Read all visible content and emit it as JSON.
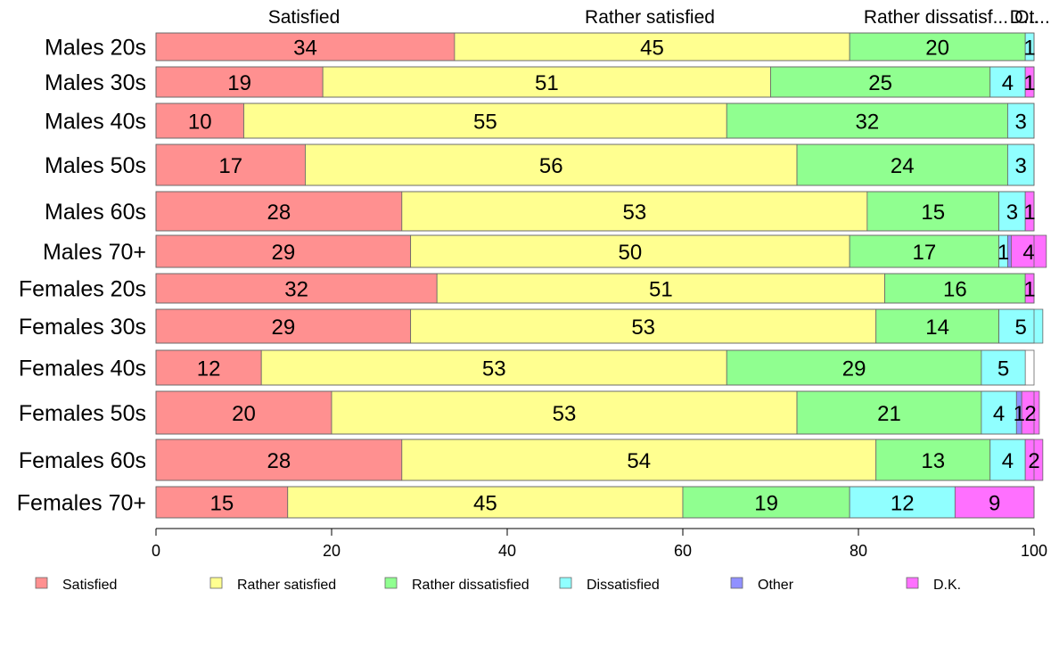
{
  "colors": {
    "Satisfied": "#ff9090",
    "Rather satisfied": "#ffff90",
    "Rather dissatisfied": "#90ff90",
    "Dissatisfied": "#90ffff",
    "Other": "#9090ff",
    "D.K.": "#ff70ff"
  },
  "chart_data": {
    "type": "bar",
    "orientation": "horizontal-stacked-100",
    "xlim": [
      0,
      100
    ],
    "x_ticks": [
      0,
      20,
      40,
      60,
      80,
      100
    ],
    "grid": false,
    "legend_position": "bottom",
    "top_labels": [
      "Satisfied",
      "Rather satisfied",
      "Rather dissatisf...",
      "D...",
      "Ot..."
    ],
    "categories": [
      "Males 20s",
      "Males 30s",
      "Males 40s",
      "Males 50s",
      "Males 60s",
      "Males 70+",
      "Females 20s",
      "Females 30s",
      "Females 40s",
      "Females 50s",
      "Females 60s",
      "Females 70+"
    ],
    "series": [
      {
        "name": "Satisfied",
        "values": [
          34,
          19,
          10,
          17,
          28,
          29,
          32,
          29,
          12,
          20,
          28,
          15
        ]
      },
      {
        "name": "Rather satisfied",
        "values": [
          45,
          51,
          55,
          56,
          53,
          50,
          51,
          53,
          53,
          53,
          54,
          45
        ]
      },
      {
        "name": "Rather dissatisfied",
        "values": [
          20,
          25,
          32,
          24,
          15,
          17,
          16,
          14,
          29,
          21,
          13,
          19
        ]
      },
      {
        "name": "Dissatisfied",
        "values": [
          1,
          4,
          3,
          3,
          3,
          1,
          0,
          5,
          5,
          4,
          4,
          12
        ]
      },
      {
        "name": "Other",
        "values": [
          0,
          0,
          0,
          0,
          0,
          0.4,
          0,
          0,
          0,
          0.6,
          0,
          0
        ]
      },
      {
        "name": "D.K.",
        "values": [
          0,
          1,
          0,
          0,
          1,
          4,
          1,
          0,
          0,
          2,
          2,
          9
        ]
      }
    ],
    "value_labels": [
      [
        "34",
        "45",
        "20",
        "1",
        "",
        ""
      ],
      [
        "19",
        "51",
        "25",
        "4",
        "",
        "1"
      ],
      [
        "10",
        "55",
        "32",
        "3",
        "",
        ""
      ],
      [
        "17",
        "56",
        "24",
        "3",
        "",
        ""
      ],
      [
        "28",
        "53",
        "15",
        "3",
        "",
        "1"
      ],
      [
        "29",
        "50",
        "17",
        "1",
        "",
        "4"
      ],
      [
        "32",
        "51",
        "16",
        "",
        "",
        "1"
      ],
      [
        "29",
        "53",
        "14",
        "5",
        "",
        ""
      ],
      [
        "12",
        "53",
        "29",
        "5",
        "",
        ""
      ],
      [
        "20",
        "53",
        "21",
        "4",
        "1",
        "2"
      ],
      [
        "28",
        "54",
        "13",
        "4",
        "",
        "2"
      ],
      [
        "15",
        "45",
        "19",
        "12",
        "",
        "9"
      ]
    ]
  }
}
